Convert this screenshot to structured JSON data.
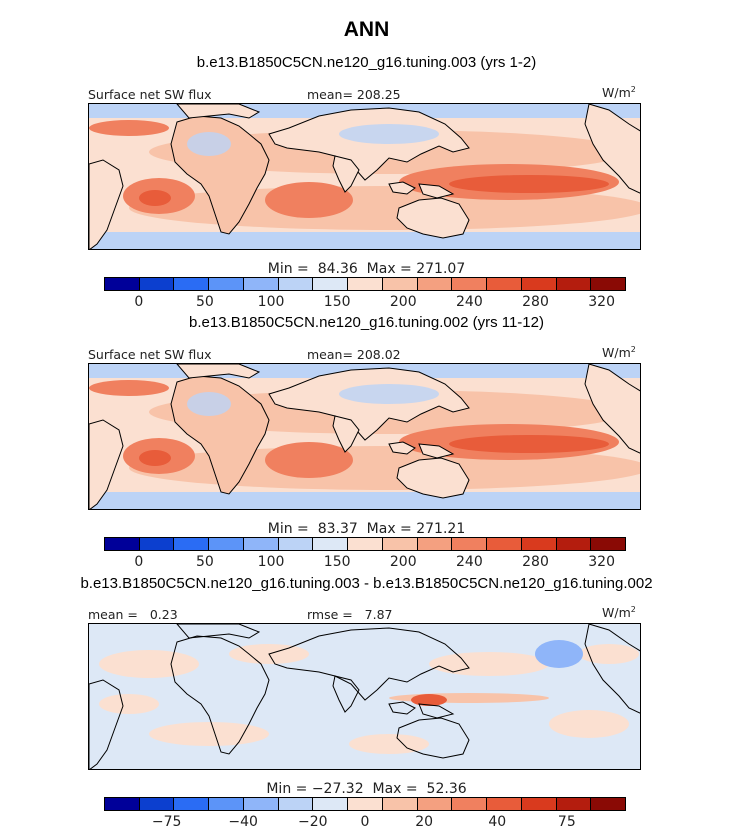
{
  "main_title": "ANN",
  "colors": {
    "cbar_abs": [
      "#000099",
      "#0c3fcf",
      "#2a6cf4",
      "#5c94f8",
      "#8fb5f9",
      "#bcd3f6",
      "#dde8f6",
      "#fbe0d1",
      "#f8c3a9",
      "#f4a080",
      "#f0805f",
      "#e85c3a",
      "#d93a1e",
      "#b41d0e",
      "#8a0a05"
    ],
    "cbar_diff": [
      "#000099",
      "#0c3fcf",
      "#2a6cf4",
      "#5c94f8",
      "#8fb5f9",
      "#bcd3f6",
      "#dde8f6",
      "#fbe0d1",
      "#f8c3a9",
      "#f4a080",
      "#f0805f",
      "#e85c3a",
      "#d93a1e",
      "#b41d0e",
      "#8a0a05"
    ],
    "ocean_mid": "#f8c3a9",
    "ocean_high": "#f0805f",
    "ocean_peak": "#e85c3a",
    "polar": "#bcd3f6",
    "diff_base": "#dde8f6",
    "diff_pos": "#fbe0d1"
  },
  "panels": [
    {
      "title": "b.e13.B1850C5CN.ne120_g16.tuning.003 (yrs 1-2)",
      "left_label": "Surface net SW flux",
      "center_label": "mean= 208.25",
      "units": "W/m",
      "units_sup": "2",
      "min_max": "Min =  84.36  Max = 271.07",
      "ticks": [
        "0",
        "50",
        "100",
        "150",
        "200",
        "240",
        "280",
        "320"
      ]
    },
    {
      "title": "b.e13.B1850C5CN.ne120_g16.tuning.002 (yrs 11-12)",
      "left_label": "Surface net SW flux",
      "center_label": "mean= 208.02",
      "units": "W/m",
      "units_sup": "2",
      "min_max": "Min =  83.37  Max = 271.21",
      "ticks": [
        "0",
        "50",
        "100",
        "150",
        "200",
        "240",
        "280",
        "320"
      ]
    },
    {
      "title": "b.e13.B1850C5CN.ne120_g16.tuning.003 - b.e13.B1850C5CN.ne120_g16.tuning.002",
      "left_label": "mean =   0.23",
      "center_label": "rmse =   7.87",
      "units": "W/m",
      "units_sup": "2",
      "min_max": "Min = −27.32  Max =  52.36",
      "ticks": [
        "−75",
        "−40",
        "−20",
        "0",
        "20",
        "40",
        "75"
      ]
    }
  ],
  "chart_data": [
    {
      "type": "heatmap",
      "title": "b.e13.B1850C5CN.ne120_g16.tuning.003 (yrs 1-2)",
      "variable": "Surface net SW flux",
      "units": "W/m^2",
      "mean": 208.25,
      "min": 84.36,
      "max": 271.07,
      "colorbar_levels": [
        0,
        50,
        100,
        150,
        200,
        240,
        280,
        320
      ]
    },
    {
      "type": "heatmap",
      "title": "b.e13.B1850C5CN.ne120_g16.tuning.002 (yrs 11-12)",
      "variable": "Surface net SW flux",
      "units": "W/m^2",
      "mean": 208.02,
      "min": 83.37,
      "max": 271.21,
      "colorbar_levels": [
        0,
        50,
        100,
        150,
        200,
        240,
        280,
        320
      ]
    },
    {
      "type": "heatmap",
      "title": "b.e13.B1850C5CN.ne120_g16.tuning.003 - b.e13.B1850C5CN.ne120_g16.tuning.002",
      "units": "W/m^2",
      "mean": 0.23,
      "rmse": 7.87,
      "min": -27.32,
      "max": 52.36,
      "colorbar_levels": [
        -75,
        -40,
        -20,
        0,
        20,
        40,
        75
      ]
    }
  ]
}
